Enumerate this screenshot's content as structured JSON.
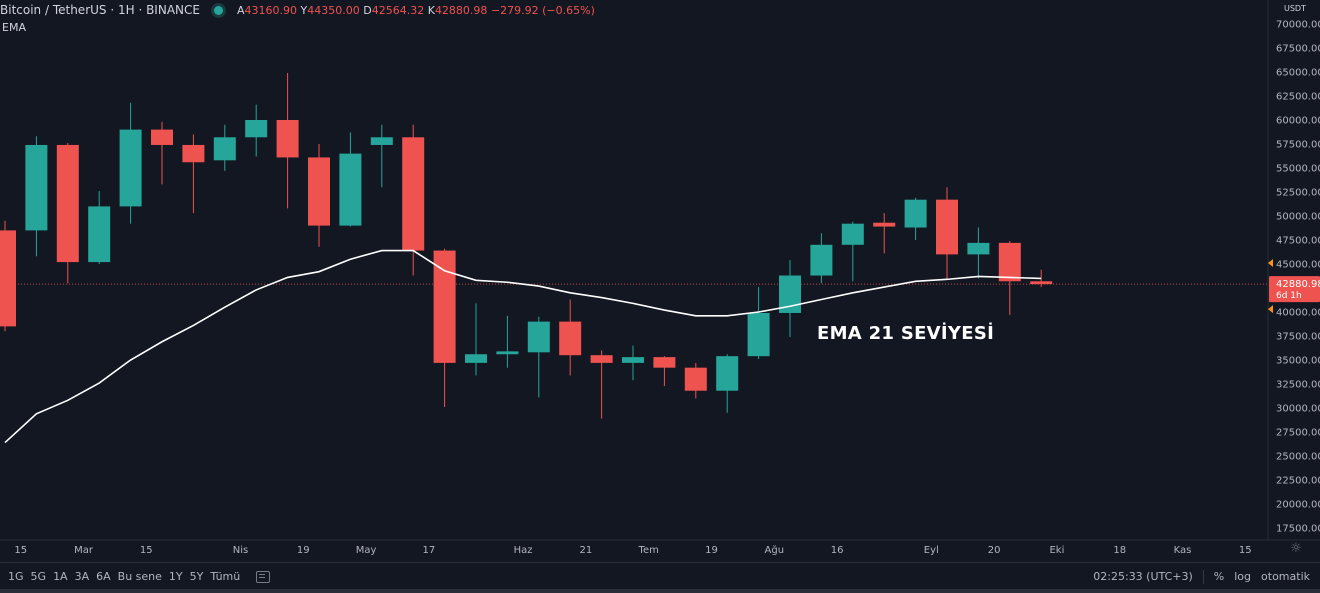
{
  "header": {
    "symbol": "Bitcoin / TetherUS · 1H · BINANCE",
    "ohlc": {
      "open_key": "A",
      "open": "43160.90",
      "high_key": "Y",
      "high": "44350.00",
      "low_key": "D",
      "low": "42564.32",
      "close_key": "K",
      "close": "42880.98",
      "change": "−279.92 (−0.65%)"
    },
    "indicator": "EMA",
    "status_color": "#26a69a"
  },
  "annotation": "EMA 21 SEVİYESİ",
  "price_axis": {
    "unit": "USDT",
    "current_price": "42880.98",
    "countdown": "6d 1h"
  },
  "bottom_bar": {
    "ranges": [
      "1G",
      "5G",
      "1A",
      "3A",
      "6A",
      "Bu sene",
      "1Y",
      "5Y",
      "Tümü"
    ],
    "time": "02:25:33 (UTC+3)",
    "percent": "%",
    "log": "log",
    "auto": "otomatik"
  },
  "colors": {
    "up": "#26a69a",
    "down": "#ef5350",
    "ema": "#ffffff",
    "background": "#131722"
  },
  "chart_data": {
    "type": "candlestick",
    "title": "Bitcoin / TetherUS",
    "ylim": [
      16250,
      72500
    ],
    "y_ticks": [
      17500,
      20000,
      22500,
      25000,
      27500,
      30000,
      32500,
      35000,
      37500,
      40000,
      42500,
      45000,
      47500,
      50000,
      52500,
      55000,
      57500,
      60000,
      62500,
      65000,
      67500,
      70000
    ],
    "x_ticks": [
      {
        "label": "15",
        "slot": 0.5
      },
      {
        "label": "Mar",
        "slot": 2.5
      },
      {
        "label": "15",
        "slot": 4.5
      },
      {
        "label": "Nis",
        "slot": 7.5
      },
      {
        "label": "19",
        "slot": 9.5
      },
      {
        "label": "May",
        "slot": 11.5
      },
      {
        "label": "17",
        "slot": 13.5
      },
      {
        "label": "Haz",
        "slot": 16.5
      },
      {
        "label": "21",
        "slot": 18.5
      },
      {
        "label": "Tem",
        "slot": 20.5
      },
      {
        "label": "19",
        "slot": 22.5
      },
      {
        "label": "Ağu",
        "slot": 24.5
      },
      {
        "label": "16",
        "slot": 26.5
      },
      {
        "label": "Eyl",
        "slot": 29.5
      },
      {
        "label": "20",
        "slot": 31.5
      },
      {
        "label": "Eki",
        "slot": 33.5
      },
      {
        "label": "18",
        "slot": 35.5
      },
      {
        "label": "Kas",
        "slot": 37.5
      },
      {
        "label": "15",
        "slot": 39.5
      }
    ],
    "candles": [
      {
        "o": 48500,
        "h": 49500,
        "l": 38000,
        "c": 38500
      },
      {
        "o": 48500,
        "h": 58300,
        "l": 45800,
        "c": 57400
      },
      {
        "o": 57400,
        "h": 57600,
        "l": 43000,
        "c": 45200
      },
      {
        "o": 45200,
        "h": 52600,
        "l": 45000,
        "c": 51000
      },
      {
        "o": 51000,
        "h": 61800,
        "l": 49200,
        "c": 59000
      },
      {
        "o": 59000,
        "h": 59800,
        "l": 53300,
        "c": 57400
      },
      {
        "o": 57400,
        "h": 58500,
        "l": 50300,
        "c": 55600
      },
      {
        "o": 55800,
        "h": 59500,
        "l": 54700,
        "c": 58200
      },
      {
        "o": 58200,
        "h": 61600,
        "l": 56200,
        "c": 60000
      },
      {
        "o": 60000,
        "h": 64900,
        "l": 50800,
        "c": 56100
      },
      {
        "o": 56100,
        "h": 57500,
        "l": 46800,
        "c": 49000
      },
      {
        "o": 49000,
        "h": 58700,
        "l": 48900,
        "c": 56500
      },
      {
        "o": 57400,
        "h": 59500,
        "l": 53000,
        "c": 58200
      },
      {
        "o": 58200,
        "h": 59500,
        "l": 43800,
        "c": 46400
      },
      {
        "o": 46400,
        "h": 46600,
        "l": 30100,
        "c": 34700
      },
      {
        "o": 34700,
        "h": 40900,
        "l": 33400,
        "c": 35600
      },
      {
        "o": 35600,
        "h": 39600,
        "l": 34200,
        "c": 35900
      },
      {
        "o": 35800,
        "h": 39500,
        "l": 31100,
        "c": 39000
      },
      {
        "o": 39000,
        "h": 41300,
        "l": 33400,
        "c": 35500
      },
      {
        "o": 35500,
        "h": 36000,
        "l": 28900,
        "c": 34700
      },
      {
        "o": 34700,
        "h": 36500,
        "l": 32900,
        "c": 35300
      },
      {
        "o": 35300,
        "h": 35400,
        "l": 32300,
        "c": 34200
      },
      {
        "o": 34200,
        "h": 34700,
        "l": 31000,
        "c": 31800
      },
      {
        "o": 31800,
        "h": 35600,
        "l": 29500,
        "c": 35400
      },
      {
        "o": 35400,
        "h": 42600,
        "l": 35100,
        "c": 39900
      },
      {
        "o": 39900,
        "h": 45400,
        "l": 37400,
        "c": 43800
      },
      {
        "o": 43800,
        "h": 48200,
        "l": 43000,
        "c": 47000
      },
      {
        "o": 47000,
        "h": 49400,
        "l": 43200,
        "c": 49200
      },
      {
        "o": 49300,
        "h": 50300,
        "l": 46100,
        "c": 48900
      },
      {
        "o": 48800,
        "h": 51900,
        "l": 47500,
        "c": 51700
      },
      {
        "o": 51700,
        "h": 53000,
        "l": 43400,
        "c": 46000
      },
      {
        "o": 46000,
        "h": 48800,
        "l": 43500,
        "c": 47200
      },
      {
        "o": 47200,
        "h": 47400,
        "l": 39700,
        "c": 43200
      },
      {
        "o": 43200,
        "h": 44400,
        "l": 42600,
        "c": 42900
      }
    ],
    "ema": {
      "name": "EMA",
      "values": [
        26400,
        29400,
        30800,
        32600,
        35000,
        36900,
        38600,
        40500,
        42300,
        43600,
        44200,
        45500,
        46400,
        46400,
        44300,
        43300,
        43100,
        42700,
        42000,
        41500,
        40900,
        40200,
        39600,
        39600,
        40000,
        40600,
        41300,
        42000,
        42600,
        43200,
        43400,
        43700,
        43600,
        43500
      ]
    }
  }
}
